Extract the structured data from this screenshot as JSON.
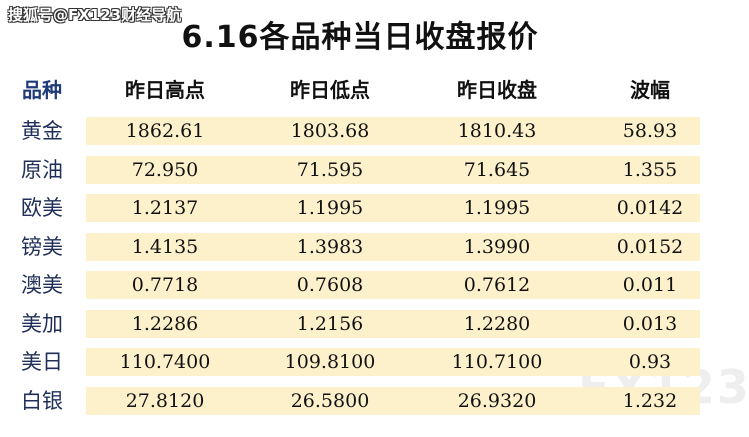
{
  "watermark": "搜狐号@FX123财经导航",
  "title": "6.16各品种当日收盘报价",
  "table": {
    "header": [
      "品种",
      "昨日高点",
      "昨日低点",
      "昨日收盘",
      "波幅"
    ],
    "rows": [
      [
        "黄金",
        "1862.61",
        "1803.68",
        "1810.43",
        "58.93"
      ],
      [
        "原油",
        "72.950",
        "71.595",
        "71.645",
        "1.355"
      ],
      [
        "欧美",
        "1.2137",
        "1.1995",
        "1.1995",
        "0.0142"
      ],
      [
        "镑美",
        "1.4135",
        "1.3983",
        "1.3990",
        "0.0152"
      ],
      [
        "澳美",
        "0.7718",
        "0.7608",
        "0.7612",
        "0.011"
      ],
      [
        "美加",
        "1.2286",
        "1.2156",
        "1.2280",
        "0.013"
      ],
      [
        "美日",
        "110.7400",
        "109.8100",
        "110.7100",
        "0.93"
      ],
      [
        "白银",
        "27.8120",
        "26.5800",
        "26.9320",
        "1.232"
      ]
    ]
  },
  "logo": "FX123"
}
